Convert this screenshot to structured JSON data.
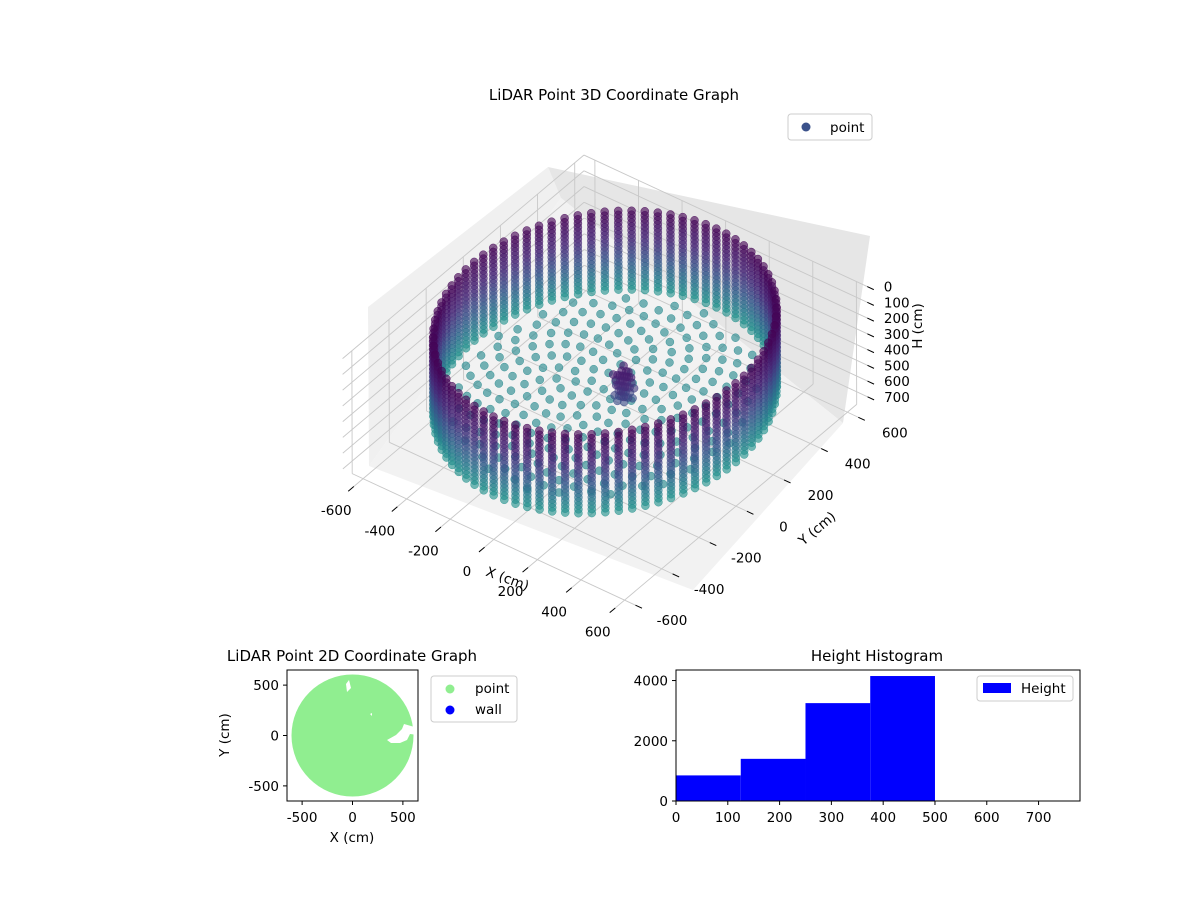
{
  "chart_data": [
    {
      "type": "scatter",
      "projection": "3d",
      "title": "LiDAR Point 3D Coordinate Graph",
      "xlabel": "X (cm)",
      "ylabel": "Y (cm)",
      "zlabel": "H (cm)",
      "xlim": [
        -650,
        650
      ],
      "ylim": [
        -650,
        650
      ],
      "zlim": [
        0,
        780
      ],
      "z_inverted": true,
      "xticks": [
        "-600",
        "-400",
        "-200",
        "0",
        "200",
        "400",
        "600"
      ],
      "yticks": [
        "600",
        "400",
        "200",
        "0",
        "-200",
        "-400",
        "-600"
      ],
      "zticks": [
        "0",
        "100",
        "200",
        "300",
        "400",
        "500",
        "600",
        "700"
      ],
      "legend": [
        {
          "label": "point",
          "color": "#3b528b"
        }
      ],
      "legend_placement": "top-right",
      "grid": true,
      "colormap": "viridis",
      "series": [
        {
          "name": "point",
          "shape": "cylindrical wall of points, radius ~600 cm, heights 0-500 cm, plus floor points and a cluster near (150,-100)",
          "wall_radius": 600,
          "height_range": [
            0,
            500
          ]
        }
      ]
    },
    {
      "type": "scatter",
      "title": "LiDAR Point 2D Coordinate Graph",
      "xlabel": "X (cm)",
      "ylabel": "Y (cm)",
      "xlim": [
        -650,
        650
      ],
      "ylim": [
        -650,
        650
      ],
      "xticks": [
        "-500",
        "0",
        "500"
      ],
      "yticks": [
        "500",
        "0",
        "-500"
      ],
      "legend": [
        {
          "label": "point",
          "color": "#90ee90"
        },
        {
          "label": "wall",
          "color": "#0000ff"
        }
      ],
      "legend_placement": "outside-right",
      "series": [
        {
          "name": "point",
          "color": "#90ee90",
          "shape": "filled disk radius ~600 cm"
        },
        {
          "name": "wall",
          "color": "#0000ff",
          "values": []
        }
      ]
    },
    {
      "type": "bar",
      "subtype": "histogram",
      "title": "Height Histogram",
      "xlim": [
        0,
        780
      ],
      "ylim": [
        0,
        4350
      ],
      "xticks": [
        "0",
        "100",
        "200",
        "300",
        "400",
        "500",
        "600",
        "700"
      ],
      "yticks": [
        "0",
        "2000",
        "4000"
      ],
      "legend": [
        {
          "label": "Height",
          "color": "#0000ff"
        }
      ],
      "legend_placement": "top-right",
      "color": "#0000ff",
      "bins": [
        {
          "x0": 0,
          "x1": 125,
          "count": 850
        },
        {
          "x0": 125,
          "x1": 250,
          "count": 1400
        },
        {
          "x0": 250,
          "x1": 375,
          "count": 3250
        },
        {
          "x0": 375,
          "x1": 500,
          "count": 4150
        }
      ]
    }
  ]
}
